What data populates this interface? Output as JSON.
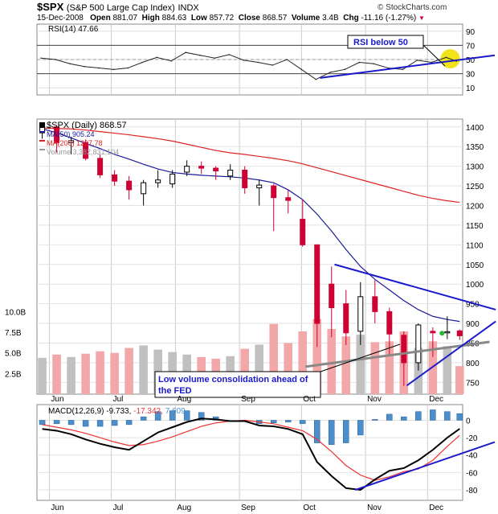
{
  "header": {
    "symbol": "$SPX",
    "name": "(S&P 500 Large Cap Index)",
    "exchange": "INDX",
    "watermark": "© StockCharts.com",
    "date": "15-Dec-2008",
    "open_label": "Open",
    "open": "881.07",
    "high_label": "High",
    "high": "884.63",
    "low_label": "Low",
    "low": "857.72",
    "close_label": "Close",
    "close": "868.57",
    "volume_label": "Volume",
    "volume": "3.4B",
    "chg_label": "Chg",
    "chg": "-11.16 (-1.27%)",
    "chg_arrow": "▼"
  },
  "colors": {
    "up": "#000000",
    "down": "#cc0033",
    "ma50": "#1a1a99",
    "ma200": "#dd2222",
    "volume_up": "#c0c0c0",
    "volume_down": "#f2a8a8",
    "annotation_blue": "#1a1acc",
    "macd_hist": "#4a8fcc",
    "signal": "#ee3333",
    "highlight": "#f0e000",
    "green_dot": "#22bb33"
  },
  "chart_data": [
    {
      "type": "line",
      "panel": "RSI",
      "legend": "RSI(14)",
      "legend_value": "47.66",
      "y_ticks": [
        "90",
        "70",
        "50",
        "30",
        "10"
      ],
      "y_range": [
        0,
        100
      ],
      "guide_lines": [
        70,
        50,
        30
      ],
      "x": [
        "2008-05-28",
        "2008-06-04",
        "2008-06-11",
        "2008-06-18",
        "2008-06-25",
        "2008-07-02",
        "2008-07-09",
        "2008-07-16",
        "2008-07-23",
        "2008-07-30",
        "2008-08-06",
        "2008-08-13",
        "2008-08-20",
        "2008-08-27",
        "2008-09-03",
        "2008-09-10",
        "2008-09-17",
        "2008-09-24",
        "2008-10-01",
        "2008-10-08",
        "2008-10-15",
        "2008-10-22",
        "2008-10-29",
        "2008-11-05",
        "2008-11-12",
        "2008-11-19",
        "2008-11-26",
        "2008-12-03",
        "2008-12-10",
        "2008-12-15"
      ],
      "values": [
        52,
        50,
        44,
        40,
        38,
        36,
        38,
        46,
        53,
        48,
        60,
        56,
        52,
        57,
        49,
        46,
        42,
        50,
        36,
        22,
        32,
        36,
        46,
        44,
        38,
        36,
        49,
        46,
        53,
        47.66
      ],
      "trendline": {
        "from": [
          "2008-10-10",
          24
        ],
        "to": [
          "2008-12-20",
          53
        ]
      },
      "annotations": [
        {
          "text": "RSI below 50"
        }
      ]
    },
    {
      "type": "candlestick",
      "panel": "Price",
      "legend": [
        {
          "label": "$SPX (Daily)",
          "value": "868.57"
        },
        {
          "label": "MA(50)",
          "value": "905.24"
        },
        {
          "label": "MA(200)",
          "value": "1207.78"
        },
        {
          "label": "Volume",
          "value": "3,382,831,104"
        }
      ],
      "y_ticks": [
        "1400",
        "1350",
        "1300",
        "1250",
        "1200",
        "1150",
        "1100",
        "1050",
        "1000",
        "950",
        "900",
        "850",
        "800",
        "750"
      ],
      "y_range": [
        720,
        1420
      ],
      "volume_ticks": [
        "10.0B",
        "7.5B",
        "5.0B",
        "2.5B"
      ],
      "volume_range_billions": [
        0,
        12
      ],
      "x_ticks": [
        "Jun",
        "Jul",
        "Aug",
        "Sep",
        "Oct",
        "Nov",
        "Dec"
      ],
      "x_tick_dates": [
        "2008-06-01",
        "2008-07-01",
        "2008-08-01",
        "2008-09-01",
        "2008-10-01",
        "2008-11-01",
        "2008-12-01"
      ],
      "weeks": [
        {
          "d": "2008-05-27",
          "o": 1385,
          "h": 1406,
          "l": 1370,
          "c": 1400
        },
        {
          "d": "2008-06-03",
          "o": 1400,
          "h": 1404,
          "l": 1335,
          "c": 1360
        },
        {
          "d": "2008-06-10",
          "o": 1360,
          "h": 1375,
          "l": 1330,
          "c": 1365
        },
        {
          "d": "2008-06-17",
          "o": 1360,
          "h": 1368,
          "l": 1315,
          "c": 1320
        },
        {
          "d": "2008-06-24",
          "o": 1320,
          "h": 1330,
          "l": 1270,
          "c": 1278
        },
        {
          "d": "2008-07-01",
          "o": 1278,
          "h": 1290,
          "l": 1250,
          "c": 1262
        },
        {
          "d": "2008-07-08",
          "o": 1262,
          "h": 1275,
          "l": 1215,
          "c": 1240
        },
        {
          "d": "2008-07-15",
          "o": 1230,
          "h": 1265,
          "l": 1200,
          "c": 1258
        },
        {
          "d": "2008-07-22",
          "o": 1258,
          "h": 1290,
          "l": 1245,
          "c": 1265
        },
        {
          "d": "2008-07-29",
          "o": 1255,
          "h": 1290,
          "l": 1245,
          "c": 1280
        },
        {
          "d": "2008-08-05",
          "o": 1285,
          "h": 1315,
          "l": 1275,
          "c": 1300
        },
        {
          "d": "2008-08-12",
          "o": 1300,
          "h": 1312,
          "l": 1280,
          "c": 1295
        },
        {
          "d": "2008-08-19",
          "o": 1295,
          "h": 1300,
          "l": 1265,
          "c": 1288
        },
        {
          "d": "2008-08-26",
          "o": 1275,
          "h": 1305,
          "l": 1265,
          "c": 1290
        },
        {
          "d": "2008-09-02",
          "o": 1290,
          "h": 1300,
          "l": 1230,
          "c": 1245
        },
        {
          "d": "2008-09-09",
          "o": 1245,
          "h": 1265,
          "l": 1200,
          "c": 1252
        },
        {
          "d": "2008-09-16",
          "o": 1250,
          "h": 1255,
          "l": 1135,
          "c": 1220
        },
        {
          "d": "2008-09-23",
          "o": 1220,
          "h": 1240,
          "l": 1180,
          "c": 1213
        },
        {
          "d": "2008-09-30",
          "o": 1165,
          "h": 1215,
          "l": 1095,
          "c": 1100
        },
        {
          "d": "2008-10-07",
          "o": 1100,
          "h": 1100,
          "l": 840,
          "c": 900
        },
        {
          "d": "2008-10-14",
          "o": 1000,
          "h": 1045,
          "l": 865,
          "c": 940
        },
        {
          "d": "2008-10-21",
          "o": 950,
          "h": 985,
          "l": 845,
          "c": 876
        },
        {
          "d": "2008-10-28",
          "o": 880,
          "h": 1005,
          "l": 845,
          "c": 968
        },
        {
          "d": "2008-11-04",
          "o": 968,
          "h": 1010,
          "l": 900,
          "c": 930
        },
        {
          "d": "2008-11-11",
          "o": 930,
          "h": 940,
          "l": 818,
          "c": 873
        },
        {
          "d": "2008-11-18",
          "o": 870,
          "h": 880,
          "l": 741,
          "c": 800
        },
        {
          "d": "2008-11-25",
          "o": 800,
          "h": 900,
          "l": 780,
          "c": 896
        },
        {
          "d": "2008-12-02",
          "o": 880,
          "h": 890,
          "l": 815,
          "c": 876
        },
        {
          "d": "2008-12-09",
          "o": 876,
          "h": 918,
          "l": 860,
          "c": 879
        },
        {
          "d": "2008-12-15",
          "o": 881.07,
          "h": 884.63,
          "l": 857.72,
          "c": 868.57
        }
      ],
      "volume_billions": [
        4.4,
        4.8,
        4.5,
        4.9,
        5.2,
        5.0,
        5.6,
        5.9,
        5.4,
        5.1,
        4.8,
        4.5,
        4.3,
        4.6,
        5.5,
        6.0,
        8.5,
        6.2,
        7.6,
        9.1,
        7.9,
        7.0,
        7.2,
        6.3,
        6.4,
        7.6,
        5.6,
        6.4,
        5.8,
        3.4
      ],
      "ma50": [
        1395,
        1385,
        1372,
        1358,
        1345,
        1330,
        1318,
        1305,
        1293,
        1284,
        1280,
        1277,
        1275,
        1273,
        1270,
        1265,
        1258,
        1240,
        1215,
        1178,
        1135,
        1088,
        1045,
        1012,
        985,
        958,
        935,
        918,
        910,
        905
      ],
      "ma200": [
        1397,
        1396,
        1395,
        1392,
        1388,
        1384,
        1380,
        1375,
        1370,
        1364,
        1356,
        1348,
        1340,
        1334,
        1330,
        1325,
        1320,
        1314,
        1306,
        1296,
        1286,
        1276,
        1266,
        1256,
        1246,
        1236,
        1226,
        1218,
        1212,
        1208
      ],
      "trendlines": [
        {
          "from": [
            "2008-10-17",
            1050
          ],
          "to": [
            "2008-12-20",
            935
          ]
        },
        {
          "from": [
            "2008-10-03",
            790
          ],
          "to": [
            "2008-12-17",
            853
          ]
        },
        {
          "from": [
            "2008-11-21",
            742
          ],
          "to": [
            "2008-12-20",
            905
          ]
        }
      ],
      "annotations": [
        {
          "text": "Low volume consolidation ahead of the FED"
        }
      ]
    },
    {
      "type": "line",
      "panel": "MACD",
      "legend": "MACD(12,26,9)",
      "macd_value": "-9.733",
      "signal_value": "-17.342",
      "hist_value": "7.609",
      "y_ticks": [
        "0",
        "-20",
        "-40",
        "-60",
        "-80"
      ],
      "y_range": [
        -92,
        18
      ],
      "x_ticks": [
        "Jun",
        "Jul",
        "Aug",
        "Sep",
        "Oct",
        "Nov",
        "Dec"
      ],
      "macd": [
        -10,
        -12,
        -16,
        -22,
        -27,
        -31,
        -34,
        -24,
        -14,
        -8,
        -2,
        2,
        1,
        -1,
        -1,
        -6,
        -7,
        -10,
        -16,
        -48,
        -64,
        -78,
        -80,
        -68,
        -58,
        -55,
        -46,
        -34,
        -20,
        -9.733
      ],
      "signal": [
        -5,
        -8,
        -11,
        -15,
        -20,
        -25,
        -29,
        -28,
        -24,
        -19,
        -13,
        -7,
        -3,
        -1,
        0,
        -2,
        -4,
        -8,
        -12,
        -22,
        -36,
        -52,
        -63,
        -69,
        -65,
        -59,
        -56,
        -46,
        -30,
        -17.342
      ],
      "trendline": {
        "from": [
          "2008-10-27",
          -80
        ],
        "to": [
          "2008-12-20",
          -25
        ]
      }
    }
  ]
}
